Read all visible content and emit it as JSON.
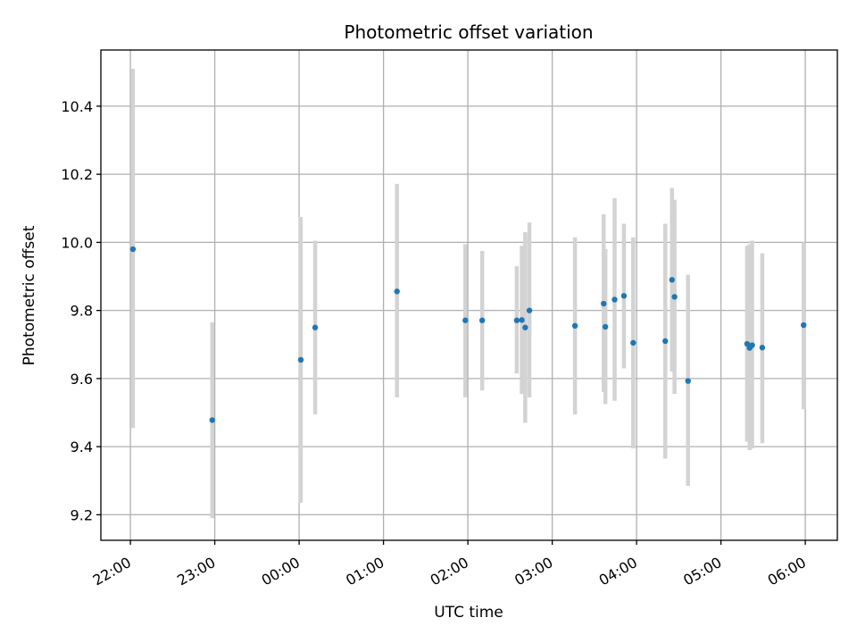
{
  "chart_data": {
    "type": "scatter",
    "title": "Photometric offset variation",
    "xlabel": "UTC time",
    "ylabel": "Photometric offset",
    "x_unit": "hours (UTC, clock continues past midnight as 24+)",
    "xlim": [
      21.65,
      30.38
    ],
    "ylim": [
      9.125,
      10.565
    ],
    "grid": true,
    "x_ticks": [
      {
        "value": 22,
        "label": "22:00"
      },
      {
        "value": 23,
        "label": "23:00"
      },
      {
        "value": 24,
        "label": "00:00"
      },
      {
        "value": 25,
        "label": "01:00"
      },
      {
        "value": 26,
        "label": "02:00"
      },
      {
        "value": 27,
        "label": "03:00"
      },
      {
        "value": 28,
        "label": "04:00"
      },
      {
        "value": 29,
        "label": "05:00"
      },
      {
        "value": 30,
        "label": "06:00"
      }
    ],
    "y_ticks": [
      {
        "value": 9.2,
        "label": "9.2"
      },
      {
        "value": 9.4,
        "label": "9.4"
      },
      {
        "value": 9.6,
        "label": "9.6"
      },
      {
        "value": 9.8,
        "label": "9.8"
      },
      {
        "value": 10.0,
        "label": "10.0"
      },
      {
        "value": 10.2,
        "label": "10.2"
      },
      {
        "value": 10.4,
        "label": "10.4"
      }
    ],
    "colors": {
      "point": "#1f77b4",
      "errorbar": "#d3d3d3"
    },
    "points": [
      {
        "x": 22.03,
        "y": 9.98,
        "ylow": 9.455,
        "yhigh": 10.51
      },
      {
        "x": 22.97,
        "y": 9.478,
        "ylow": 9.19,
        "yhigh": 9.765
      },
      {
        "x": 24.02,
        "y": 9.655,
        "ylow": 9.235,
        "yhigh": 10.075
      },
      {
        "x": 24.19,
        "y": 9.75,
        "ylow": 9.495,
        "yhigh": 10.005
      },
      {
        "x": 25.16,
        "y": 9.856,
        "ylow": 9.545,
        "yhigh": 10.172
      },
      {
        "x": 25.97,
        "y": 9.771,
        "ylow": 9.545,
        "yhigh": 9.995
      },
      {
        "x": 26.17,
        "y": 9.771,
        "ylow": 9.565,
        "yhigh": 9.975
      },
      {
        "x": 26.58,
        "y": 9.771,
        "ylow": 9.615,
        "yhigh": 9.93
      },
      {
        "x": 26.64,
        "y": 9.772,
        "ylow": 9.555,
        "yhigh": 9.99
      },
      {
        "x": 26.68,
        "y": 9.75,
        "ylow": 9.47,
        "yhigh": 10.03
      },
      {
        "x": 26.73,
        "y": 9.8,
        "ylow": 9.545,
        "yhigh": 10.058
      },
      {
        "x": 27.27,
        "y": 9.755,
        "ylow": 9.495,
        "yhigh": 10.015
      },
      {
        "x": 27.61,
        "y": 9.82,
        "ylow": 9.56,
        "yhigh": 10.082
      },
      {
        "x": 27.63,
        "y": 9.752,
        "ylow": 9.525,
        "yhigh": 9.98
      },
      {
        "x": 27.74,
        "y": 9.832,
        "ylow": 9.535,
        "yhigh": 10.13
      },
      {
        "x": 27.85,
        "y": 9.843,
        "ylow": 9.63,
        "yhigh": 10.055
      },
      {
        "x": 27.96,
        "y": 9.705,
        "ylow": 9.395,
        "yhigh": 10.015
      },
      {
        "x": 28.34,
        "y": 9.71,
        "ylow": 9.365,
        "yhigh": 10.055
      },
      {
        "x": 28.42,
        "y": 9.89,
        "ylow": 9.62,
        "yhigh": 10.16
      },
      {
        "x": 28.45,
        "y": 9.84,
        "ylow": 9.555,
        "yhigh": 10.125
      },
      {
        "x": 28.61,
        "y": 9.593,
        "ylow": 9.285,
        "yhigh": 9.905
      },
      {
        "x": 29.31,
        "y": 9.702,
        "ylow": 9.415,
        "yhigh": 9.99
      },
      {
        "x": 29.34,
        "y": 9.69,
        "ylow": 9.39,
        "yhigh": 9.995
      },
      {
        "x": 29.37,
        "y": 9.698,
        "ylow": 9.395,
        "yhigh": 10.005
      },
      {
        "x": 29.49,
        "y": 9.691,
        "ylow": 9.41,
        "yhigh": 9.968
      },
      {
        "x": 29.98,
        "y": 9.757,
        "ylow": 9.51,
        "yhigh": 10.0
      }
    ]
  }
}
